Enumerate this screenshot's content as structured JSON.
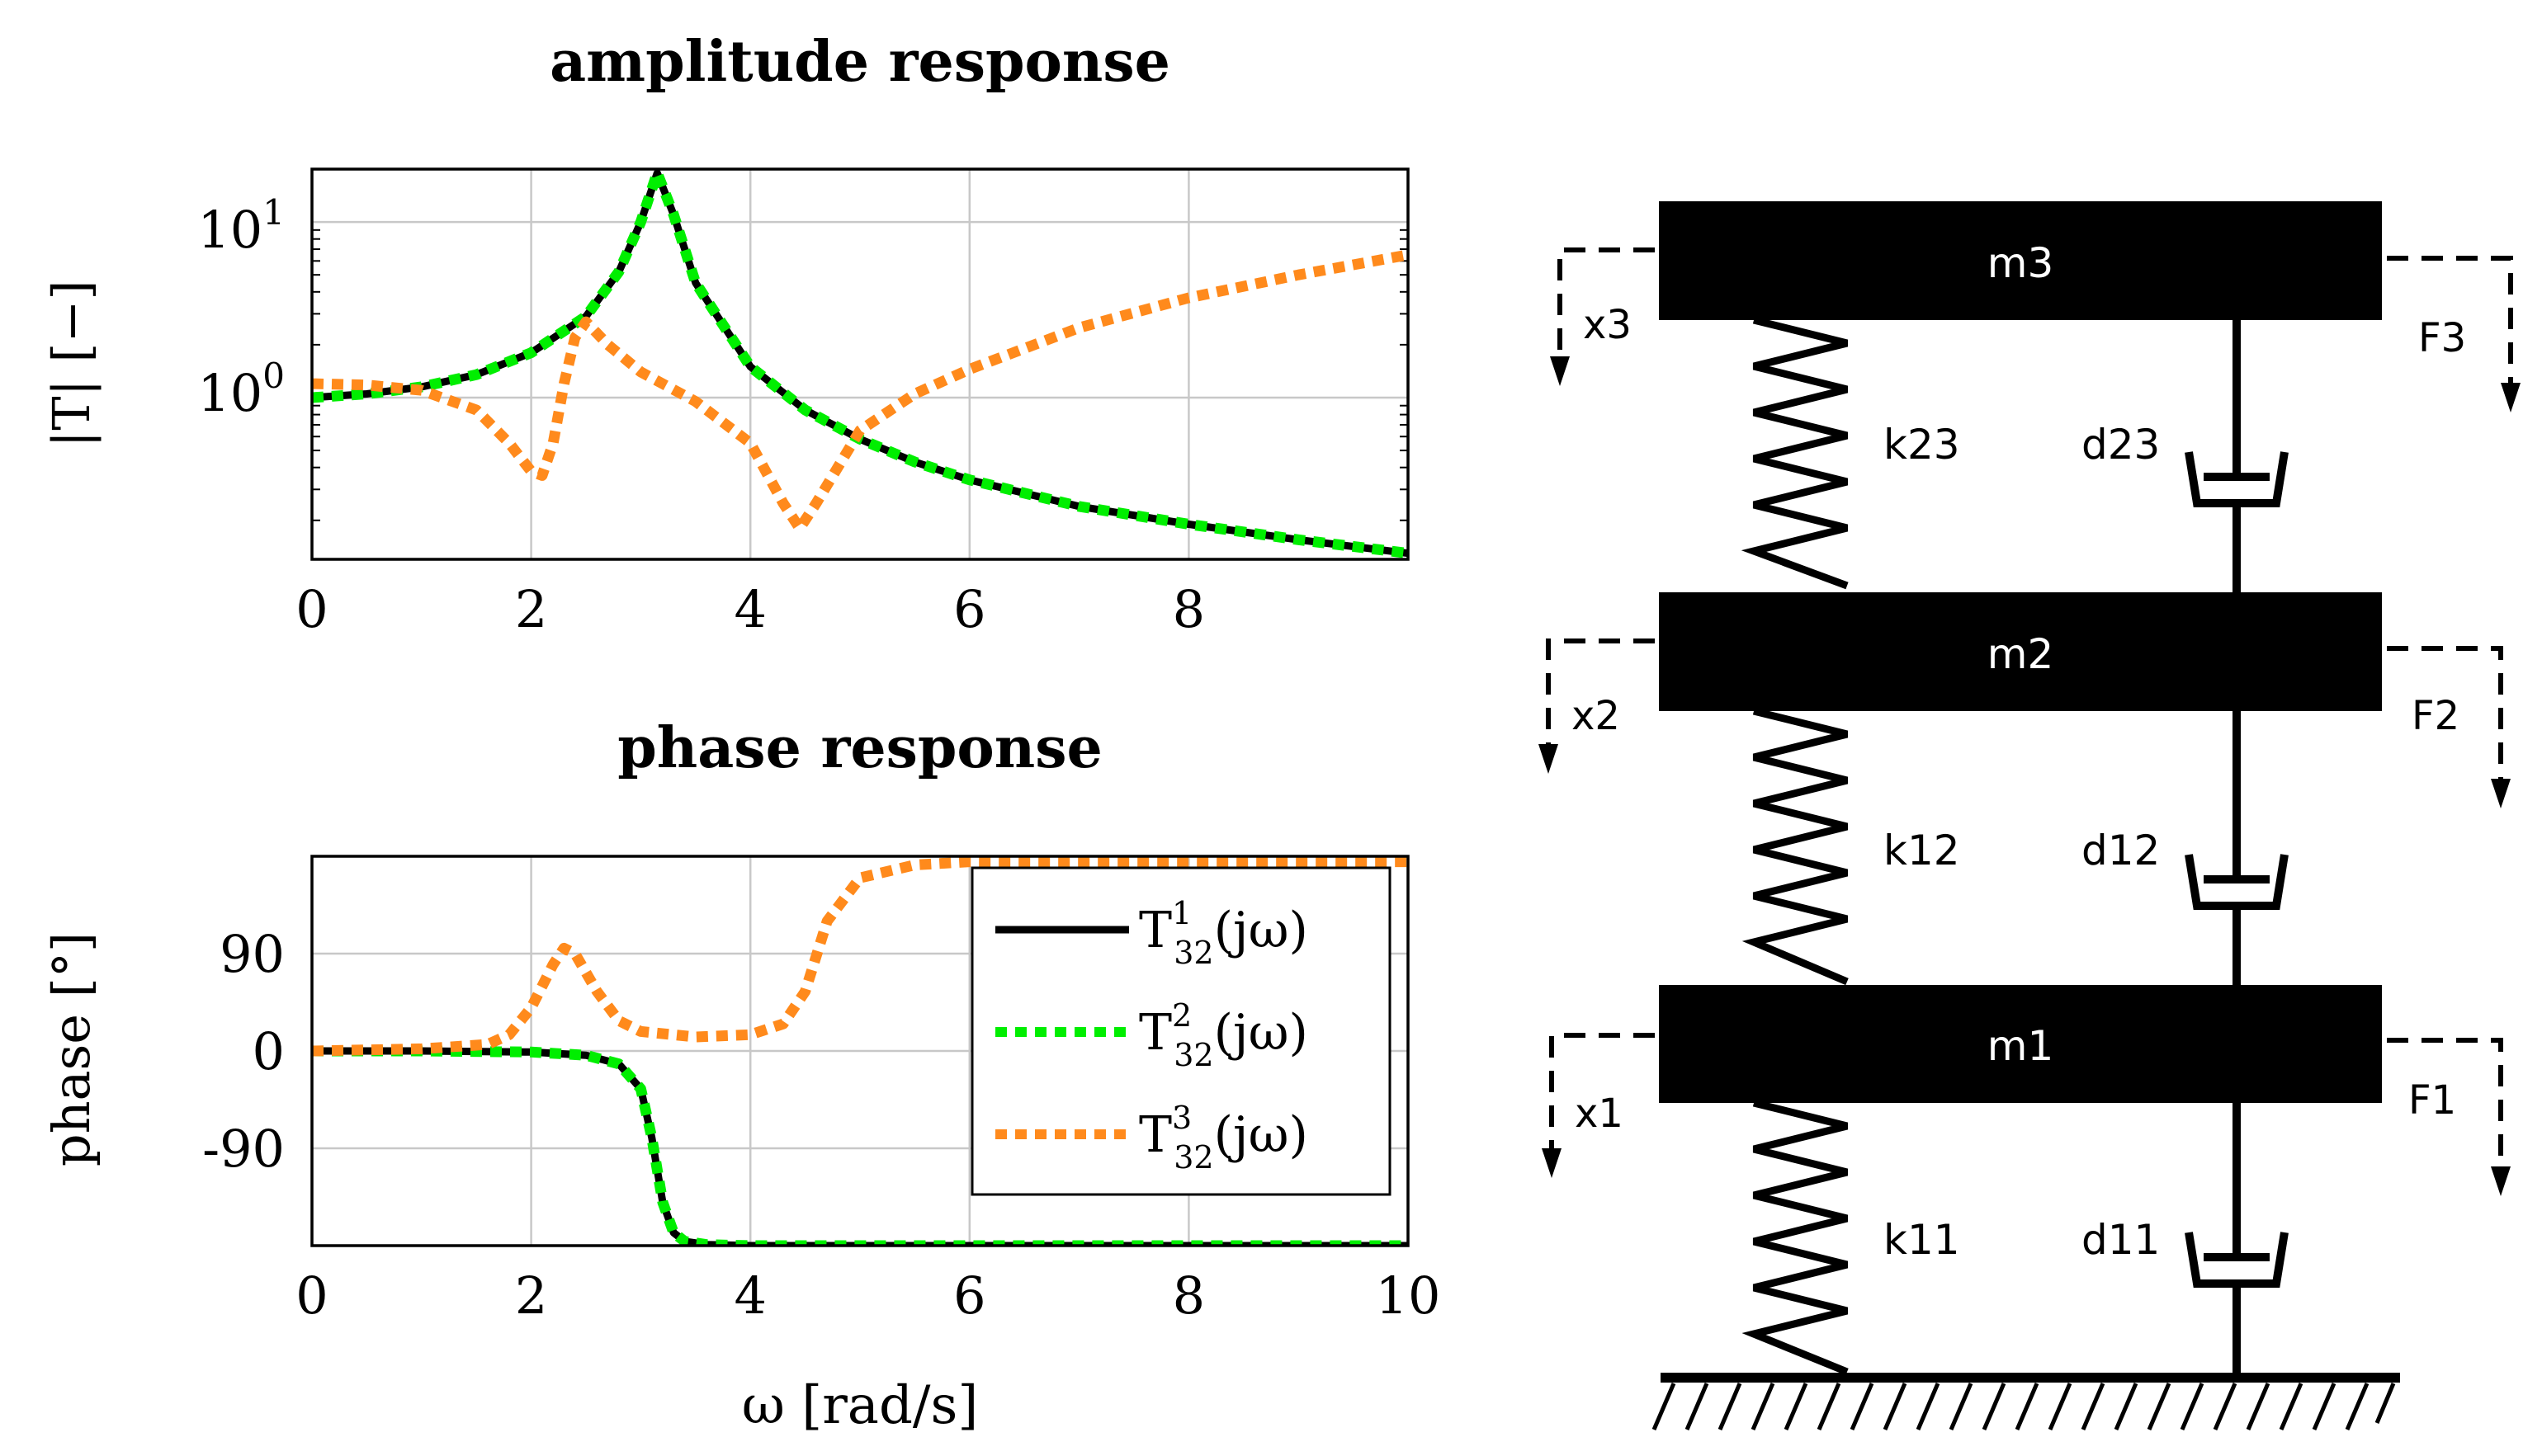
{
  "colors": {
    "black": "#000000",
    "green": "#00ee00",
    "orange": "#ff8a1c",
    "grid": "#c8c8c8"
  },
  "series_legend": [
    {
      "base": "T",
      "sup": "1",
      "sub": "32",
      "arg": "(jω)",
      "color": "#000000",
      "style": "solid"
    },
    {
      "base": "T",
      "sup": "2",
      "sub": "32",
      "arg": "(jω)",
      "color": "#00ee00",
      "style": "dotted"
    },
    {
      "base": "T",
      "sup": "3",
      "sub": "32",
      "arg": "(jω)",
      "color": "#ff8a1c",
      "style": "dotted"
    }
  ],
  "chart_data": [
    {
      "type": "line",
      "title": "amplitude response",
      "xlabel": "",
      "ylabel": "|T| [−]",
      "yscale": "log",
      "xlim": [
        0,
        10
      ],
      "ylim": [
        0.12,
        20
      ],
      "x_ticks": [
        "0",
        "2",
        "4",
        "6",
        "8"
      ],
      "y_tick_labels": [
        {
          "base": "10",
          "exp": "1",
          "value": 10
        },
        {
          "base": "10",
          "exp": "0",
          "value": 1
        }
      ],
      "grid": true,
      "x": [
        0,
        0.5,
        1,
        1.5,
        2,
        2.5,
        2.8,
        3,
        3.15,
        3.3,
        3.5,
        4,
        4.5,
        5,
        5.5,
        6,
        7,
        8,
        9,
        10
      ],
      "series": [
        {
          "name": "T132",
          "color": "#000000",
          "style": "solid",
          "values": [
            1.0,
            1.05,
            1.15,
            1.35,
            1.8,
            2.9,
            5.2,
            10,
            19,
            11,
            4.5,
            1.5,
            0.85,
            0.58,
            0.43,
            0.34,
            0.24,
            0.19,
            0.155,
            0.13
          ]
        },
        {
          "name": "T232",
          "color": "#00ee00",
          "style": "dotted",
          "values": [
            1.0,
            1.05,
            1.15,
            1.35,
            1.8,
            2.9,
            5.2,
            10,
            19,
            11,
            4.5,
            1.5,
            0.85,
            0.58,
            0.43,
            0.34,
            0.24,
            0.19,
            0.155,
            0.13
          ]
        },
        {
          "name": "T332",
          "color": "#ff8a1c",
          "style": "dotted",
          "x": [
            0,
            0.5,
            1,
            1.5,
            1.8,
            2,
            2.1,
            2.2,
            2.3,
            2.4,
            2.5,
            2.7,
            3,
            3.5,
            4,
            4.3,
            4.45,
            4.6,
            5,
            5.5,
            6,
            7,
            8,
            9,
            10
          ],
          "values": [
            1.2,
            1.18,
            1.1,
            0.85,
            0.55,
            0.38,
            0.36,
            0.55,
            1.2,
            2.2,
            2.7,
            2.0,
            1.4,
            0.95,
            0.55,
            0.25,
            0.18,
            0.25,
            0.65,
            1.05,
            1.45,
            2.5,
            3.7,
            5.0,
            6.5
          ]
        }
      ]
    },
    {
      "type": "line",
      "title": "phase response",
      "xlabel": "ω [rad/s]",
      "ylabel": "phase [°]",
      "xlim": [
        0,
        10
      ],
      "ylim": [
        -180,
        180
      ],
      "x_ticks": [
        "0",
        "2",
        "4",
        "6",
        "8",
        "10"
      ],
      "y_ticks": [
        "90",
        "0",
        "-90"
      ],
      "grid": true,
      "legend": "top-right",
      "series": [
        {
          "name": "T132",
          "color": "#000000",
          "style": "solid",
          "x": [
            0,
            1,
            2,
            2.5,
            2.8,
            3.0,
            3.1,
            3.2,
            3.3,
            3.4,
            3.6,
            4,
            6,
            8,
            10
          ],
          "values": [
            0,
            0,
            -1,
            -4,
            -12,
            -35,
            -80,
            -140,
            -168,
            -176,
            -179,
            -180,
            -180,
            -180,
            -180
          ]
        },
        {
          "name": "T232",
          "color": "#00ee00",
          "style": "dotted",
          "x": [
            0,
            1,
            2,
            2.5,
            2.8,
            3.0,
            3.1,
            3.2,
            3.3,
            3.4,
            3.6,
            4,
            6,
            8,
            10
          ],
          "values": [
            0,
            0,
            -1,
            -4,
            -12,
            -35,
            -80,
            -140,
            -168,
            -176,
            -179,
            -180,
            -180,
            -180,
            -180
          ]
        },
        {
          "name": "T332",
          "color": "#ff8a1c",
          "style": "dotted",
          "x": [
            0,
            1,
            1.6,
            1.8,
            2.0,
            2.2,
            2.3,
            2.4,
            2.6,
            2.8,
            3.0,
            3.5,
            4.0,
            4.3,
            4.5,
            4.7,
            5.0,
            5.5,
            6,
            8,
            10
          ],
          "values": [
            0,
            2,
            6,
            15,
            40,
            80,
            95,
            90,
            55,
            28,
            18,
            13,
            15,
            25,
            55,
            120,
            160,
            172,
            175,
            175,
            175
          ]
        }
      ]
    }
  ],
  "diagram": {
    "masses": [
      "m3",
      "m2",
      "m1"
    ],
    "displacements": [
      "x3",
      "x2",
      "x1"
    ],
    "forces": [
      "F3",
      "F2",
      "F1"
    ],
    "springs": [
      "k23",
      "k12",
      "k11"
    ],
    "dampers": [
      "d23",
      "d12",
      "d11"
    ]
  }
}
